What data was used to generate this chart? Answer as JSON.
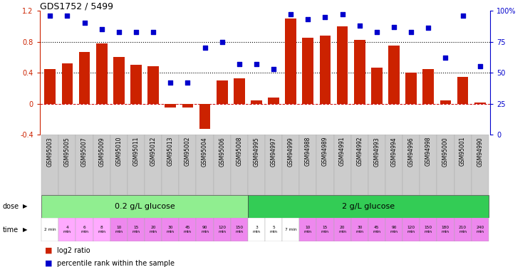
{
  "title": "GDS1752 / 5499",
  "sample_ids": [
    "GSM95003",
    "GSM95005",
    "GSM95007",
    "GSM95009",
    "GSM95010",
    "GSM95011",
    "GSM95012",
    "GSM95013",
    "GSM95002",
    "GSM95004",
    "GSM95006",
    "GSM95008",
    "GSM94995",
    "GSM94997",
    "GSM94999",
    "GSM94988",
    "GSM94989",
    "GSM94991",
    "GSM94992",
    "GSM94993",
    "GSM94994",
    "GSM94996",
    "GSM94998",
    "GSM95000",
    "GSM95001",
    "GSM94990"
  ],
  "log2_ratio": [
    0.45,
    0.52,
    0.67,
    0.78,
    0.6,
    0.5,
    0.48,
    -0.05,
    -0.05,
    -0.32,
    0.3,
    0.33,
    0.04,
    0.08,
    1.1,
    0.85,
    0.88,
    1.0,
    0.82,
    0.47,
    0.75,
    0.4,
    0.45,
    0.04,
    0.35,
    0.02
  ],
  "percentile": [
    96,
    96,
    90,
    85,
    83,
    83,
    83,
    42,
    42,
    70,
    75,
    57,
    57,
    53,
    97,
    93,
    95,
    97,
    88,
    83,
    87,
    83,
    86,
    62,
    96,
    55
  ],
  "dose_groups": [
    {
      "label": "0.2 g/L glucose",
      "start": 0,
      "end": 12,
      "color": "#90ee90"
    },
    {
      "label": "2 g/L glucose",
      "start": 12,
      "end": 26,
      "color": "#33cc55"
    }
  ],
  "time_labels": [
    "2 min",
    "4\nmin",
    "6\nmin",
    "8\nmin",
    "10\nmin",
    "15\nmin",
    "20\nmin",
    "30\nmin",
    "45\nmin",
    "90\nmin",
    "120\nmin",
    "150\nmin",
    "3\nmin",
    "5\nmin",
    "7 min",
    "10\nmin",
    "15\nmin",
    "20\nmin",
    "30\nmin",
    "45\nmin",
    "90\nmin",
    "120\nmin",
    "150\nmin",
    "180\nmin",
    "210\nmin",
    "240\nmin"
  ],
  "time_colors": [
    "#ffffff",
    "#ffaaff",
    "#ffaaff",
    "#ffaaff",
    "#ee88ee",
    "#ee88ee",
    "#ee88ee",
    "#ee88ee",
    "#ee88ee",
    "#ee88ee",
    "#ee88ee",
    "#ee88ee",
    "#ffffff",
    "#ffffff",
    "#ffffff",
    "#ee88ee",
    "#ee88ee",
    "#ee88ee",
    "#ee88ee",
    "#ee88ee",
    "#ee88ee",
    "#ee88ee",
    "#ee88ee",
    "#ee88ee",
    "#ee88ee",
    "#ee88ee"
  ],
  "bar_color": "#cc2200",
  "dot_color": "#0000cc",
  "ylim_left": [
    -0.4,
    1.2
  ],
  "ylim_right": [
    0,
    100
  ],
  "yticks_left": [
    -0.4,
    0.0,
    0.4,
    0.8,
    1.2
  ],
  "ytick_labels_left": [
    "-0.4",
    "0",
    "0.4",
    "0.8",
    "1.2"
  ],
  "yticks_right": [
    0,
    25,
    50,
    75,
    100
  ],
  "ytick_labels_right": [
    "0",
    "25",
    "50",
    "75",
    "100%"
  ],
  "hlines": [
    0.4,
    0.8
  ],
  "zero_line_color": "#cc0000",
  "bg_color": "#ffffff",
  "grid_color": "#dddddd",
  "label_bg": "#cccccc",
  "legend_items": [
    {
      "color": "#cc2200",
      "label": "log2 ratio"
    },
    {
      "color": "#0000cc",
      "label": "percentile rank within the sample"
    }
  ]
}
